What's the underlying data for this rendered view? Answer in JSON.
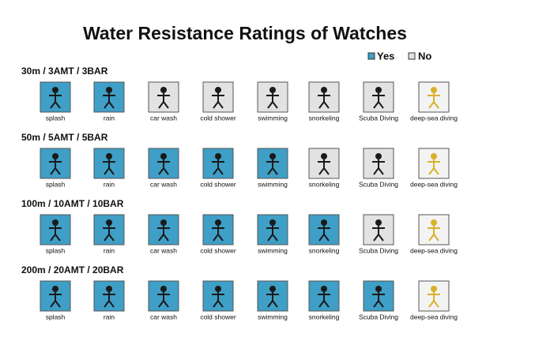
{
  "title": "Water Resistance Ratings of Watches",
  "legend": {
    "yes": {
      "label": "Yes",
      "color": "#3f9fc6"
    },
    "no": {
      "label": "No",
      "color": "#e2e2e2"
    }
  },
  "rows": [
    {
      "rating": "30m / 3AMT / 3BAR",
      "activities": [
        {
          "label": "splash",
          "yes": true
        },
        {
          "label": "rain",
          "yes": true
        },
        {
          "label": "car wash",
          "yes": false
        },
        {
          "label": "cold shower",
          "yes": false
        },
        {
          "label": "swimming",
          "yes": false
        },
        {
          "label": "snorkeling",
          "yes": false
        },
        {
          "label": "Scuba Diving",
          "yes": false
        },
        {
          "label": "deep-sea diving",
          "yes": false
        }
      ]
    },
    {
      "rating": "50m / 5AMT / 5BAR",
      "activities": [
        {
          "label": "splash",
          "yes": true
        },
        {
          "label": "rain",
          "yes": true
        },
        {
          "label": "car wash",
          "yes": true
        },
        {
          "label": "cold shower",
          "yes": true
        },
        {
          "label": "swimming",
          "yes": true
        },
        {
          "label": "snorkeling",
          "yes": false
        },
        {
          "label": "Scuba Diving",
          "yes": false
        },
        {
          "label": "deep-sea diving",
          "yes": false
        }
      ]
    },
    {
      "rating": "100m / 10AMT / 10BAR",
      "activities": [
        {
          "label": "splash",
          "yes": true
        },
        {
          "label": "rain",
          "yes": true
        },
        {
          "label": "car wash",
          "yes": true
        },
        {
          "label": "cold shower",
          "yes": true
        },
        {
          "label": "swimming",
          "yes": true
        },
        {
          "label": "snorkeling",
          "yes": true
        },
        {
          "label": "Scuba Diving",
          "yes": false
        },
        {
          "label": "deep-sea diving",
          "yes": false
        }
      ]
    },
    {
      "rating": "200m / 20AMT / 20BAR",
      "activities": [
        {
          "label": "splash",
          "yes": true
        },
        {
          "label": "rain",
          "yes": true
        },
        {
          "label": "car wash",
          "yes": true
        },
        {
          "label": "cold shower",
          "yes": true
        },
        {
          "label": "swimming",
          "yes": true
        },
        {
          "label": "snorkeling",
          "yes": true
        },
        {
          "label": "Scuba Diving",
          "yes": true
        },
        {
          "label": "deep-sea diving",
          "yes": false
        }
      ]
    }
  ]
}
